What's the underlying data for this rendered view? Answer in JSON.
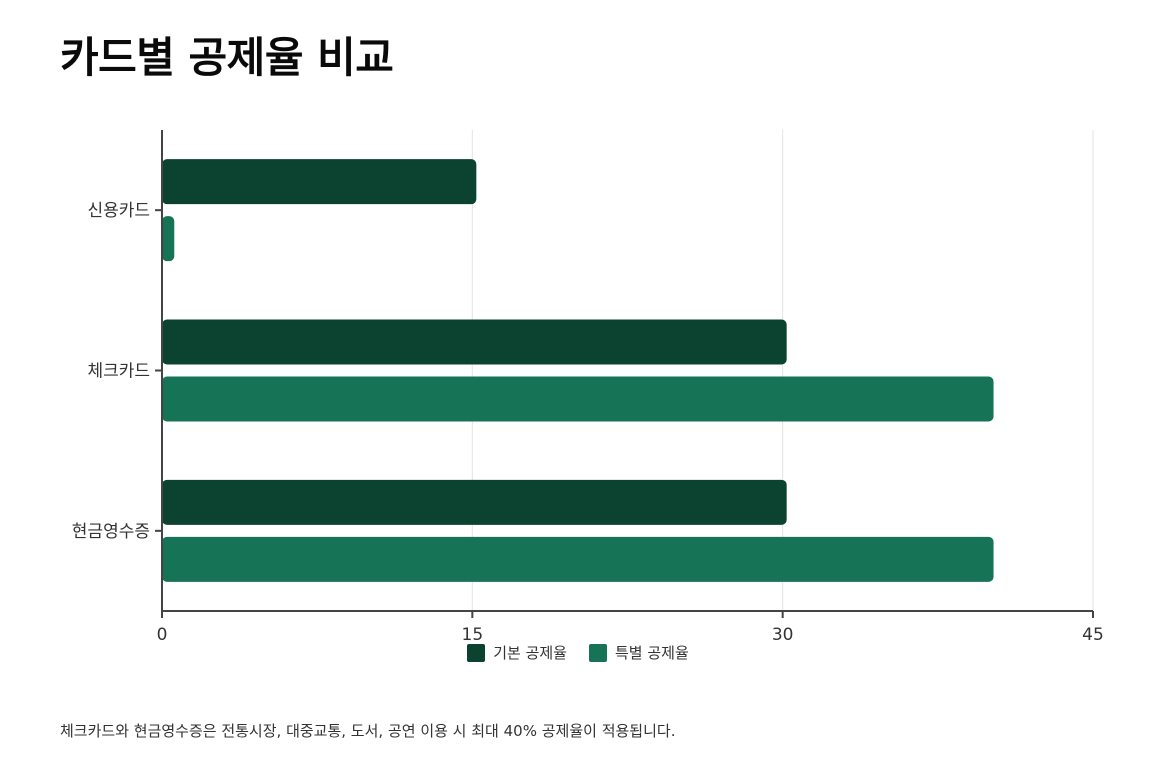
{
  "chart_data": {
    "type": "bar",
    "orientation": "horizontal",
    "title": "카드별 공제율 비교",
    "categories": [
      "신용카드",
      "체크카드",
      "현금영수증"
    ],
    "series": [
      {
        "name": "기본 공제율",
        "values": [
          15,
          30,
          30
        ],
        "color": "#0c4230"
      },
      {
        "name": "특별 공제율",
        "values": [
          0.4,
          40,
          40
        ],
        "color": "#167356"
      }
    ],
    "xlim": [
      0,
      45
    ],
    "xticks": [
      "0",
      "15",
      "30",
      "45"
    ],
    "grid": true,
    "legend": "bottom-center",
    "footnote": "체크카드와 현금영수증은 전통시장, 대중교통, 도서, 공연 이용 시 최대 40% 공제율이 적용됩니다."
  }
}
